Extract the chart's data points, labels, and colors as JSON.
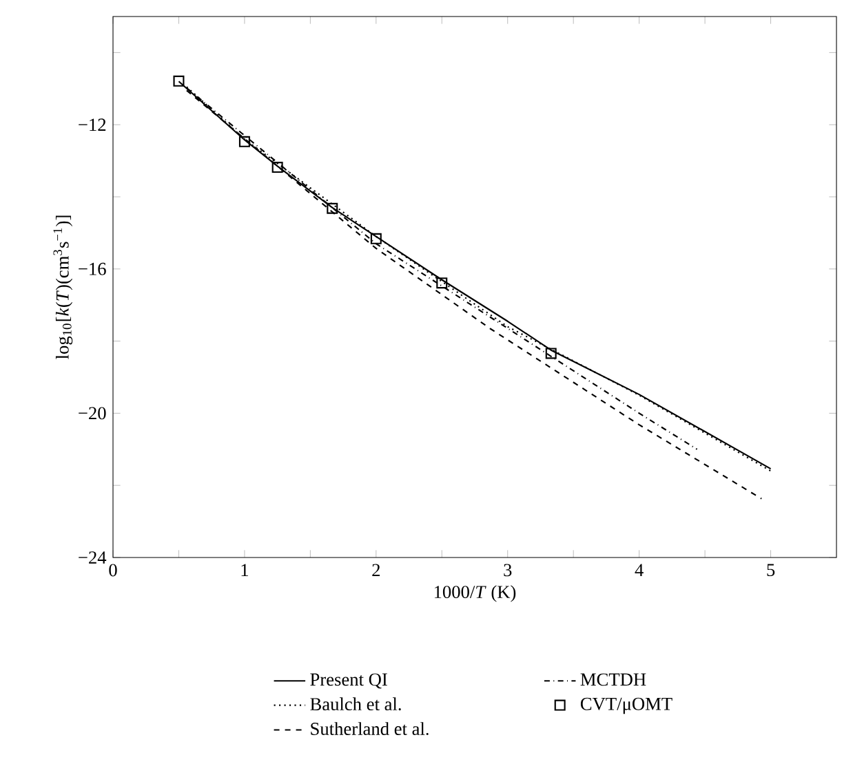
{
  "chart_data": {
    "type": "line",
    "xlabel": "1000/*T* (K)",
    "ylabel": "log$_{10}$[*k*(*T*)(cm$^{3}$s$^{−1}$)]",
    "xlim": [
      0,
      5.5
    ],
    "ylim": [
      -24,
      -9
    ],
    "xticks": [
      0,
      {
        "value": 0.5,
        "label": null
      },
      1,
      {
        "value": 1.5,
        "label": null
      },
      2,
      {
        "value": 2.5,
        "label": null
      },
      3,
      {
        "value": 3.5,
        "label": null
      },
      4,
      {
        "value": 4.5,
        "label": null
      },
      5
    ],
    "yticks": [
      {
        "value": -24,
        "label": "−24"
      },
      {
        "value": -22,
        "label": null
      },
      {
        "value": -20,
        "label": "−20"
      },
      {
        "value": -18,
        "label": null
      },
      {
        "value": -16,
        "label": "−16"
      },
      {
        "value": -14,
        "label": null
      },
      {
        "value": -12,
        "label": "−12"
      },
      {
        "value": -10,
        "label": null
      }
    ],
    "grid": false,
    "legend": "bottom",
    "series": [
      {
        "name": "Present QI",
        "color": "#000000",
        "line_style": "solid",
        "x": [
          0.5,
          1,
          1.25,
          1.667,
          2,
          2.5,
          3,
          3.33,
          4,
          5
        ],
        "values": [
          -10.8,
          -12.42,
          -13.15,
          -14.3,
          -15.1,
          -16.3,
          -17.45,
          -18.25,
          -19.48,
          -21.54
        ]
      },
      {
        "name": "Baulch et al.",
        "color": "#000000",
        "line_style": "dotted",
        "x": [
          0.56,
          1,
          2,
          3,
          4,
          5
        ],
        "values": [
          -10.95,
          -12.4,
          -15.1,
          -17.6,
          -19.5,
          -21.6
        ]
      },
      {
        "name": "Sutherland et al.",
        "color": "#000000",
        "line_style": "dashed",
        "x": [
          0.56,
          2,
          2.87,
          4,
          4.93
        ],
        "values": [
          -11.05,
          -15.43,
          -17.66,
          -20.32,
          -22.37
        ]
      },
      {
        "name": "MCTDH",
        "color": "#000000",
        "line_style": "dashdot",
        "x": [
          0.56,
          2,
          2.87,
          4,
          4.44
        ],
        "values": [
          -10.98,
          -15.3,
          -17.34,
          -20.0,
          -21.0
        ]
      },
      {
        "name": "CVT/μOMT",
        "color": "#000000",
        "type": "scatter",
        "marker": "square",
        "x": [
          0.5,
          1,
          1.25,
          1.667,
          2,
          2.5,
          3.33
        ],
        "values": [
          -10.79,
          -12.47,
          -13.18,
          -14.32,
          -15.16,
          -16.39,
          -18.34
        ]
      }
    ]
  }
}
